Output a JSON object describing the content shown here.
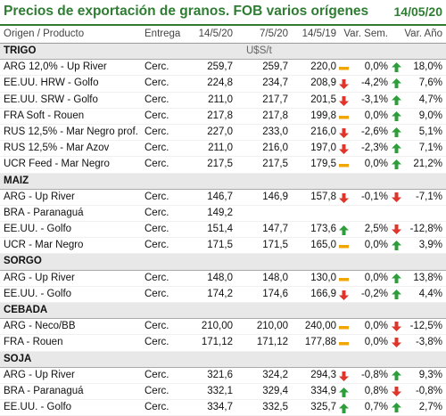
{
  "header": {
    "title": "Precios de exportación de granos. FOB varios orígenes",
    "date": "14/05/20"
  },
  "columns": {
    "origin": "Origen / Producto",
    "delivery": "Entrega",
    "c1": "14/5/20",
    "c2": "7/5/20",
    "c3": "14/5/19",
    "c4": "Var. Sem.",
    "c5": "Var. Año"
  },
  "colors": {
    "up": "#2e9e3a",
    "down": "#e0352b",
    "flat": "#f0a500",
    "accent": "#2e7d32"
  },
  "sections": [
    {
      "name": "TRIGO",
      "unit": "U$S/t",
      "rows": [
        {
          "product": "ARG 12,0% - Up River",
          "delivery": "Cerc.",
          "p1": "259,7",
          "p2": "259,7",
          "p3": "220,0",
          "i3": "flat",
          "vs": "0,0%",
          "i4": "up",
          "va": "18,0%"
        },
        {
          "product": "EE.UU. HRW - Golfo",
          "delivery": "Cerc.",
          "p1": "224,8",
          "p2": "234,7",
          "p3": "208,9",
          "i3": "down",
          "vs": "-4,2%",
          "i4": "up",
          "va": "7,6%"
        },
        {
          "product": "EE.UU. SRW - Golfo",
          "delivery": "Cerc.",
          "p1": "211,0",
          "p2": "217,7",
          "p3": "201,5",
          "i3": "down",
          "vs": "-3,1%",
          "i4": "up",
          "va": "4,7%"
        },
        {
          "product": "FRA Soft - Rouen",
          "delivery": "Cerc.",
          "p1": "217,8",
          "p2": "217,8",
          "p3": "199,8",
          "i3": "flat",
          "vs": "0,0%",
          "i4": "up",
          "va": "9,0%"
        },
        {
          "product": "RUS 12,5% - Mar Negro prof.",
          "delivery": "Cerc.",
          "p1": "227,0",
          "p2": "233,0",
          "p3": "216,0",
          "i3": "down",
          "vs": "-2,6%",
          "i4": "up",
          "va": "5,1%"
        },
        {
          "product": "RUS 12,5% - Mar Azov",
          "delivery": "Cerc.",
          "p1": "211,0",
          "p2": "216,0",
          "p3": "197,0",
          "i3": "down",
          "vs": "-2,3%",
          "i4": "up",
          "va": "7,1%"
        },
        {
          "product": "UCR Feed - Mar Negro",
          "delivery": "Cerc.",
          "p1": "217,5",
          "p2": "217,5",
          "p3": "179,5",
          "i3": "flat",
          "vs": "0,0%",
          "i4": "up",
          "va": "21,2%"
        }
      ]
    },
    {
      "name": "MAIZ",
      "unit": "",
      "rows": [
        {
          "product": "ARG - Up River",
          "delivery": "Cerc.",
          "p1": "146,7",
          "p2": "146,9",
          "p3": "157,8",
          "i3": "down",
          "vs": "-0,1%",
          "i4": "down",
          "va": "-7,1%"
        },
        {
          "product": "BRA - Paranaguá",
          "delivery": "Cerc.",
          "p1": "149,2",
          "p2": "",
          "p3": "",
          "i3": "",
          "vs": "",
          "i4": "",
          "va": ""
        },
        {
          "product": "EE.UU. - Golfo",
          "delivery": "Cerc.",
          "p1": "151,4",
          "p2": "147,7",
          "p3": "173,6",
          "i3": "up",
          "vs": "2,5%",
          "i4": "down",
          "va": "-12,8%"
        },
        {
          "product": "UCR - Mar Negro",
          "delivery": "Cerc.",
          "p1": "171,5",
          "p2": "171,5",
          "p3": "165,0",
          "i3": "flat",
          "vs": "0,0%",
          "i4": "up",
          "va": "3,9%"
        }
      ]
    },
    {
      "name": "SORGO",
      "unit": "",
      "rows": [
        {
          "product": "ARG - Up River",
          "delivery": "Cerc.",
          "p1": "148,0",
          "p2": "148,0",
          "p3": "130,0",
          "i3": "flat",
          "vs": "0,0%",
          "i4": "up",
          "va": "13,8%"
        },
        {
          "product": "EE.UU. - Golfo",
          "delivery": "Cerc.",
          "p1": "174,2",
          "p2": "174,6",
          "p3": "166,9",
          "i3": "down",
          "vs": "-0,2%",
          "i4": "up",
          "va": "4,4%"
        }
      ]
    },
    {
      "name": "CEBADA",
      "unit": "",
      "rows": [
        {
          "product": "ARG - Neco/BB",
          "delivery": "Cerc.",
          "p1": "210,00",
          "p2": "210,00",
          "p3": "240,00",
          "i3": "flat",
          "vs": "0,0%",
          "i4": "down",
          "va": "-12,5%"
        },
        {
          "product": "FRA - Rouen",
          "delivery": "Cerc.",
          "p1": "171,12",
          "p2": "171,12",
          "p3": "177,88",
          "i3": "flat",
          "vs": "0,0%",
          "i4": "down",
          "va": "-3,8%"
        }
      ]
    },
    {
      "name": "SOJA",
      "unit": "",
      "rows": [
        {
          "product": "ARG - Up River",
          "delivery": "Cerc.",
          "p1": "321,6",
          "p2": "324,2",
          "p3": "294,3",
          "i3": "down",
          "vs": "-0,8%",
          "i4": "up",
          "va": "9,3%"
        },
        {
          "product": "BRA - Paranaguá",
          "delivery": "Cerc.",
          "p1": "332,1",
          "p2": "329,4",
          "p3": "334,9",
          "i3": "up",
          "vs": "0,8%",
          "i4": "down",
          "va": "-0,8%"
        },
        {
          "product": "EE.UU. - Golfo",
          "delivery": "Cerc.",
          "p1": "334,7",
          "p2": "332,5",
          "p3": "325,7",
          "i3": "up",
          "vs": "0,7%",
          "i4": "up",
          "va": "2,7%"
        }
      ]
    }
  ]
}
